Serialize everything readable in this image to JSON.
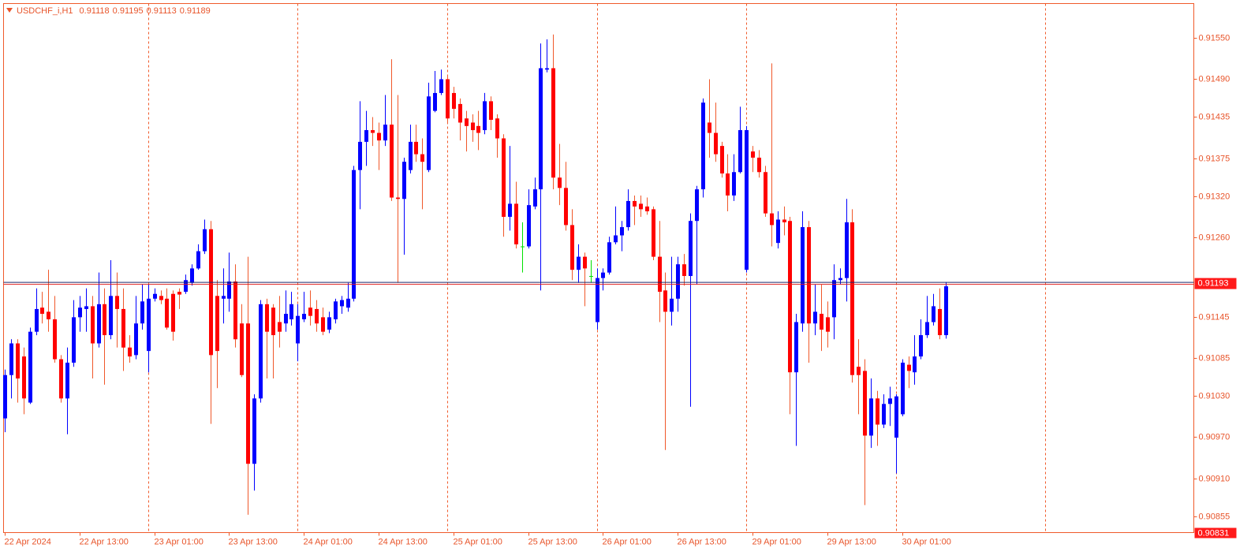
{
  "chart_data": {
    "type": "candlestick",
    "title": "USDCHF_i,H1",
    "categories": [
      "22 Apr 2024",
      null,
      null,
      null,
      null,
      null,
      null,
      null,
      null,
      null,
      null,
      null,
      "22 Apr 13:00",
      null,
      null,
      null,
      null,
      null,
      null,
      null,
      null,
      null,
      null,
      null,
      "23 Apr 01:00",
      null,
      null,
      null,
      null,
      null,
      null,
      null,
      null,
      null,
      null,
      null,
      "23 Apr 13:00",
      null,
      null,
      null,
      null,
      null,
      null,
      null,
      null,
      null,
      null,
      null,
      "24 Apr 01:00",
      null,
      null,
      null,
      null,
      null,
      null,
      null,
      null,
      null,
      null,
      null,
      "24 Apr 13:00",
      null,
      null,
      null,
      null,
      null,
      null,
      null,
      null,
      null,
      null,
      null,
      "25 Apr 01:00",
      null,
      null,
      null,
      null,
      null,
      null,
      null,
      null,
      null,
      null,
      null,
      "25 Apr 13:00",
      null,
      null,
      null,
      null,
      null,
      null,
      null,
      null,
      null,
      null,
      null,
      "26 Apr 01:00",
      null,
      null,
      null,
      null,
      null,
      null,
      null,
      null,
      null,
      null,
      null,
      "26 Apr 13:00",
      null,
      null,
      null,
      null,
      null,
      null,
      null,
      null,
      null,
      null,
      null,
      "29 Apr 01:00",
      null,
      null,
      null,
      null,
      null,
      null,
      null,
      null,
      null,
      null,
      null,
      "29 Apr 13:00",
      null,
      null,
      null,
      null,
      null,
      null,
      null,
      null,
      null,
      null,
      null,
      "30 Apr 01:00",
      null,
      null,
      null,
      null,
      null,
      null,
      null
    ],
    "open": [
      0.90997,
      0.9106,
      0.91106,
      0.91087,
      0.9102,
      0.91123,
      0.91158,
      0.91152,
      0.91141,
      0.91083,
      0.91026,
      0.91078,
      0.91144,
      0.91156,
      0.9116,
      0.91106,
      0.91163,
      0.91118,
      0.91175,
      0.91156,
      0.911,
      0.91089,
      0.91135,
      0.91095,
      0.91171,
      0.91175,
      0.91171,
      0.91178,
      0.91181,
      0.91181,
      0.91194,
      0.91215,
      0.9124,
      0.91272,
      0.91175,
      0.91171,
      0.91171,
      0.91196,
      0.91135,
      0.91135,
      0.90931,
      0.91026,
      0.91163,
      0.91158,
      0.91137,
      0.91135,
      0.91141,
      0.91106,
      0.91141,
      0.91158,
      0.91156,
      0.91144,
      0.91126,
      0.91141,
      0.9116,
      0.91158,
      0.91171,
      0.91358,
      0.91399,
      0.91416,
      0.91412,
      0.91401,
      0.91424,
      0.91318,
      0.91316,
      0.91358,
      0.91399,
      0.91381,
      0.91358,
      0.91444,
      0.9147,
      0.9149,
      0.9147,
      0.91454,
      0.91433,
      0.91427,
      0.91422,
      0.91416,
      0.91458,
      0.91433,
      0.91404,
      0.9129,
      0.91309,
      0.91247,
      0.91247,
      0.91305,
      0.9133,
      0.91504,
      0.91506,
      0.91347,
      0.91332,
      0.91278,
      0.91213,
      0.91232,
      0.91204,
      0.91137,
      0.91201,
      0.91209,
      0.91253,
      0.91263,
      0.91275,
      0.91313,
      0.91309,
      0.91305,
      0.91301,
      0.91232,
      0.91183,
      0.91152,
      0.91171,
      0.91221,
      0.91204,
      0.91284,
      0.9133,
      0.91427,
      0.91412,
      0.91393,
      0.91353,
      0.91321,
      0.91355,
      0.91213,
      0.91385,
      0.91376,
      0.91355,
      0.91295,
      0.91252,
      0.91286,
      0.91284,
      0.91064,
      0.91135,
      0.91275,
      0.91135,
      0.91149,
      0.91144,
      0.91144,
      0.91198,
      0.91201,
      0.91282,
      0.91072,
      0.91066,
      0.90972,
      0.91026,
      0.90988,
      0.91018,
      0.90969,
      0.91003,
      0.91075,
      0.91064,
      0.91087,
      0.91118,
      0.91137,
      0.91156,
      0.91118
    ],
    "high": [
      0.91068,
      0.91112,
      0.91112,
      0.911,
      0.91129,
      0.91186,
      0.91181,
      0.91213,
      0.91175,
      0.91089,
      0.911,
      0.91169,
      0.91175,
      0.91186,
      0.91175,
      0.91209,
      0.91186,
      0.91227,
      0.91209,
      0.91186,
      0.91118,
      0.91175,
      0.91192,
      0.91192,
      0.91186,
      0.91183,
      0.91186,
      0.91183,
      0.91186,
      0.91206,
      0.91221,
      0.9125,
      0.91286,
      0.91284,
      0.91198,
      0.91215,
      0.91238,
      0.91221,
      0.91163,
      0.91232,
      0.91032,
      0.91169,
      0.91171,
      0.91163,
      0.91175,
      0.91183,
      0.91181,
      0.91163,
      0.91181,
      0.91183,
      0.91169,
      0.91158,
      0.91152,
      0.91171,
      0.91175,
      0.91194,
      0.91364,
      0.91458,
      0.91444,
      0.91435,
      0.91427,
      0.91467,
      0.91519,
      0.91467,
      0.91376,
      0.91424,
      0.91424,
      0.91404,
      0.91485,
      0.91502,
      0.91504,
      0.91496,
      0.91479,
      0.91462,
      0.91444,
      0.91439,
      0.91444,
      0.9147,
      0.91465,
      0.91439,
      0.9141,
      0.91393,
      0.91341,
      0.91282,
      0.9133,
      0.91347,
      0.91542,
      0.91548,
      0.91555,
      0.91396,
      0.9137,
      0.91301,
      0.9125,
      0.91238,
      0.91227,
      0.91215,
      0.91215,
      0.91261,
      0.91305,
      0.91284,
      0.9133,
      0.91321,
      0.91321,
      0.91318,
      0.91305,
      0.91284,
      0.91209,
      0.91232,
      0.91232,
      0.91236,
      0.91295,
      0.91335,
      0.91462,
      0.9149,
      0.91456,
      0.91399,
      0.91381,
      0.91381,
      0.9145,
      0.91422,
      0.91393,
      0.91387,
      0.91364,
      0.91513,
      0.91298,
      0.91305,
      0.9129,
      0.91149,
      0.91298,
      0.91284,
      0.91192,
      0.91192,
      0.91167,
      0.91221,
      0.91215,
      0.91316,
      0.91301,
      0.91112,
      0.91083,
      0.91055,
      0.91037,
      0.91032,
      0.91043,
      0.91032,
      0.91083,
      0.91087,
      0.91118,
      0.91141,
      0.91175,
      0.91178,
      0.91186,
      0.91195
    ],
    "low": [
      0.90977,
      0.91026,
      0.9102,
      0.91003,
      0.91018,
      0.91118,
      0.91135,
      0.91123,
      0.91078,
      0.9102,
      0.90974,
      0.91072,
      0.91123,
      0.91123,
      0.91055,
      0.911,
      0.91046,
      0.91112,
      0.911,
      0.91066,
      0.91078,
      0.91083,
      0.91126,
      0.91064,
      0.91167,
      0.91163,
      0.91126,
      0.9111,
      0.91156,
      0.91178,
      0.9119,
      0.91213,
      0.91236,
      0.90989,
      0.91041,
      0.91135,
      0.91152,
      0.911,
      0.91057,
      0.90857,
      0.90892,
      0.9102,
      0.91055,
      0.91055,
      0.911,
      0.91123,
      0.91132,
      0.9108,
      0.91137,
      0.91132,
      0.91123,
      0.91118,
      0.91121,
      0.91135,
      0.91149,
      0.91152,
      0.91167,
      0.91301,
      0.91364,
      0.91393,
      0.91358,
      0.91393,
      0.91313,
      0.91194,
      0.91235,
      0.91353,
      0.9137,
      0.91301,
      0.91355,
      0.91442,
      0.91467,
      0.91427,
      0.91433,
      0.91401,
      0.91385,
      0.91399,
      0.91387,
      0.9141,
      0.91416,
      0.91376,
      0.91261,
      0.9127,
      0.91244,
      0.91209,
      0.91244,
      0.91301,
      0.91183,
      0.915,
      0.9133,
      0.91307,
      0.9127,
      0.91198,
      0.91194,
      0.9116,
      0.91194,
      0.91126,
      0.91183,
      0.91206,
      0.9125,
      0.9124,
      0.9127,
      0.91278,
      0.9129,
      0.91293,
      0.91227,
      0.91137,
      0.90951,
      0.91132,
      0.91152,
      0.9119,
      0.91014,
      0.91192,
      0.91318,
      0.91376,
      0.9137,
      0.91347,
      0.91298,
      0.91313,
      0.91353,
      0.91209,
      0.91355,
      0.91347,
      0.9129,
      0.91247,
      0.91244,
      0.91263,
      0.91003,
      0.90957,
      0.91123,
      0.91078,
      0.91118,
      0.91095,
      0.911,
      0.91112,
      0.91192,
      0.91167,
      0.91049,
      0.91003,
      0.90871,
      0.90954,
      0.90957,
      0.90983,
      0.90986,
      0.90917,
      0.91,
      0.91041,
      0.91046,
      0.91083,
      0.91114,
      0.91132,
      0.91112,
      0.91113
    ],
    "close": [
      0.9106,
      0.91106,
      0.91055,
      0.91026,
      0.91123,
      0.91156,
      0.91149,
      0.91141,
      0.91083,
      0.91026,
      0.91078,
      0.91144,
      0.91158,
      0.9116,
      0.91106,
      0.91163,
      0.91118,
      0.91175,
      0.91156,
      0.911,
      0.91087,
      0.91135,
      0.91167,
      0.91171,
      0.91178,
      0.91169,
      0.91129,
      0.91123,
      0.91177,
      0.91198,
      0.91215,
      0.9124,
      0.91272,
      0.91089,
      0.91095,
      0.91175,
      0.91196,
      0.91112,
      0.9106,
      0.90931,
      0.91026,
      0.91163,
      0.91123,
      0.91118,
      0.91123,
      0.91149,
      0.91163,
      0.91146,
      0.91149,
      0.91146,
      0.91135,
      0.91123,
      0.91144,
      0.91167,
      0.91169,
      0.91171,
      0.91358,
      0.91399,
      0.91416,
      0.91412,
      0.91401,
      0.91424,
      0.91318,
      0.91316,
      0.9137,
      0.91399,
      0.91381,
      0.9137,
      0.91465,
      0.9147,
      0.9149,
      0.91433,
      0.91447,
      0.91427,
      0.91422,
      0.91416,
      0.91412,
      0.91458,
      0.91431,
      0.91404,
      0.9129,
      0.91309,
      0.9125,
      0.91247,
      0.91307,
      0.9133,
      0.91506,
      0.91506,
      0.91347,
      0.91332,
      0.91278,
      0.91213,
      0.91232,
      0.91215,
      0.91204,
      0.91201,
      0.91209,
      0.91253,
      0.91263,
      0.91275,
      0.91313,
      0.91305,
      0.91301,
      0.91298,
      0.91232,
      0.91181,
      0.91152,
      0.91171,
      0.91221,
      0.91204,
      0.91284,
      0.9133,
      0.91456,
      0.91412,
      0.91381,
      0.91353,
      0.91321,
      0.91355,
      0.91416,
      0.91416,
      0.91376,
      0.91355,
      0.91295,
      0.91278,
      0.91286,
      0.91282,
      0.91064,
      0.91137,
      0.91275,
      0.91135,
      0.91152,
      0.91126,
      0.91123,
      0.91198,
      0.91201,
      0.91282,
      0.9106,
      0.9106,
      0.90972,
      0.91026,
      0.90988,
      0.91018,
      0.91026,
      0.91029,
      0.91078,
      0.91066,
      0.91087,
      0.91118,
      0.91137,
      0.9116,
      0.91118,
      0.91189
    ],
    "up_color": "#0000ff",
    "down_color": "#ff0000",
    "doji_color": "#00e000",
    "price_line": 0.91193,
    "ylim": [
      0.90831,
      0.916
    ],
    "yticks": [
      {
        "value": 0.9155,
        "label": "0.91550"
      },
      {
        "value": 0.9149,
        "label": "0.91490"
      },
      0.91435,
      0.91375,
      {
        "value": 0.9132,
        "label": "0.91320"
      },
      {
        "value": 0.9126,
        "label": "0.91260"
      },
      0.91145,
      0.91085,
      {
        "value": 0.9103,
        "label": "0.91030"
      },
      {
        "value": 0.9097,
        "label": "0.90970"
      },
      {
        "value": 0.9091,
        "label": "0.90910"
      },
      0.90855
    ],
    "grid": false
  }
}
